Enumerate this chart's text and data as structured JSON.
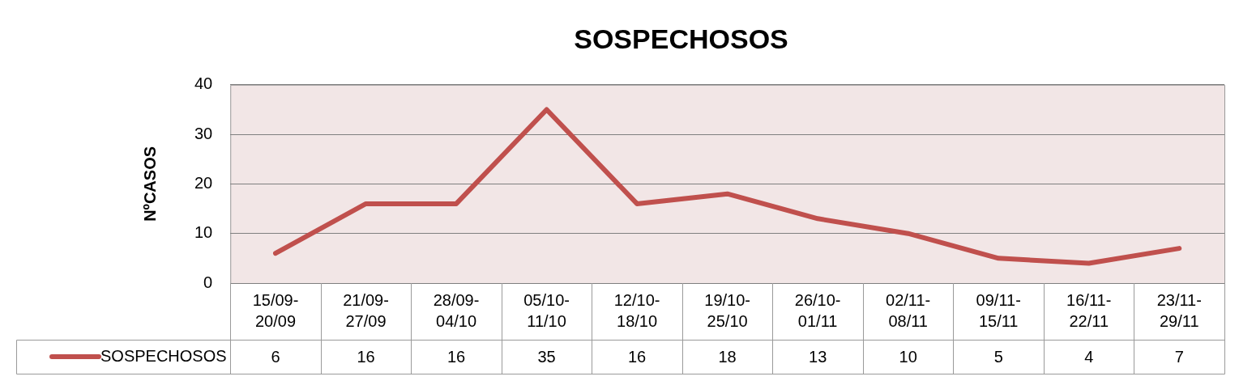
{
  "chart_data": {
    "type": "line",
    "title": "SOSPECHOSOS",
    "ylabel": "NºCASOS",
    "categories": [
      "15/09-20/09",
      "21/09-27/09",
      "28/09-04/10",
      "05/10-11/10",
      "12/10-18/10",
      "19/10-25/10",
      "26/10-01/11",
      "02/11-08/11",
      "09/11-15/11",
      "16/11-22/11",
      "23/11-29/11"
    ],
    "series": [
      {
        "name": "SOSPECHOSOS",
        "color": "#c0504d",
        "values": [
          6,
          16,
          16,
          35,
          16,
          18,
          13,
          10,
          5,
          4,
          7
        ]
      }
    ],
    "ylim": [
      0,
      40
    ],
    "yticks": [
      0,
      10,
      20,
      30,
      40
    ],
    "grid": "y",
    "legend": "bottom",
    "data_labels": true,
    "marker": "none",
    "line_style": "solid"
  }
}
